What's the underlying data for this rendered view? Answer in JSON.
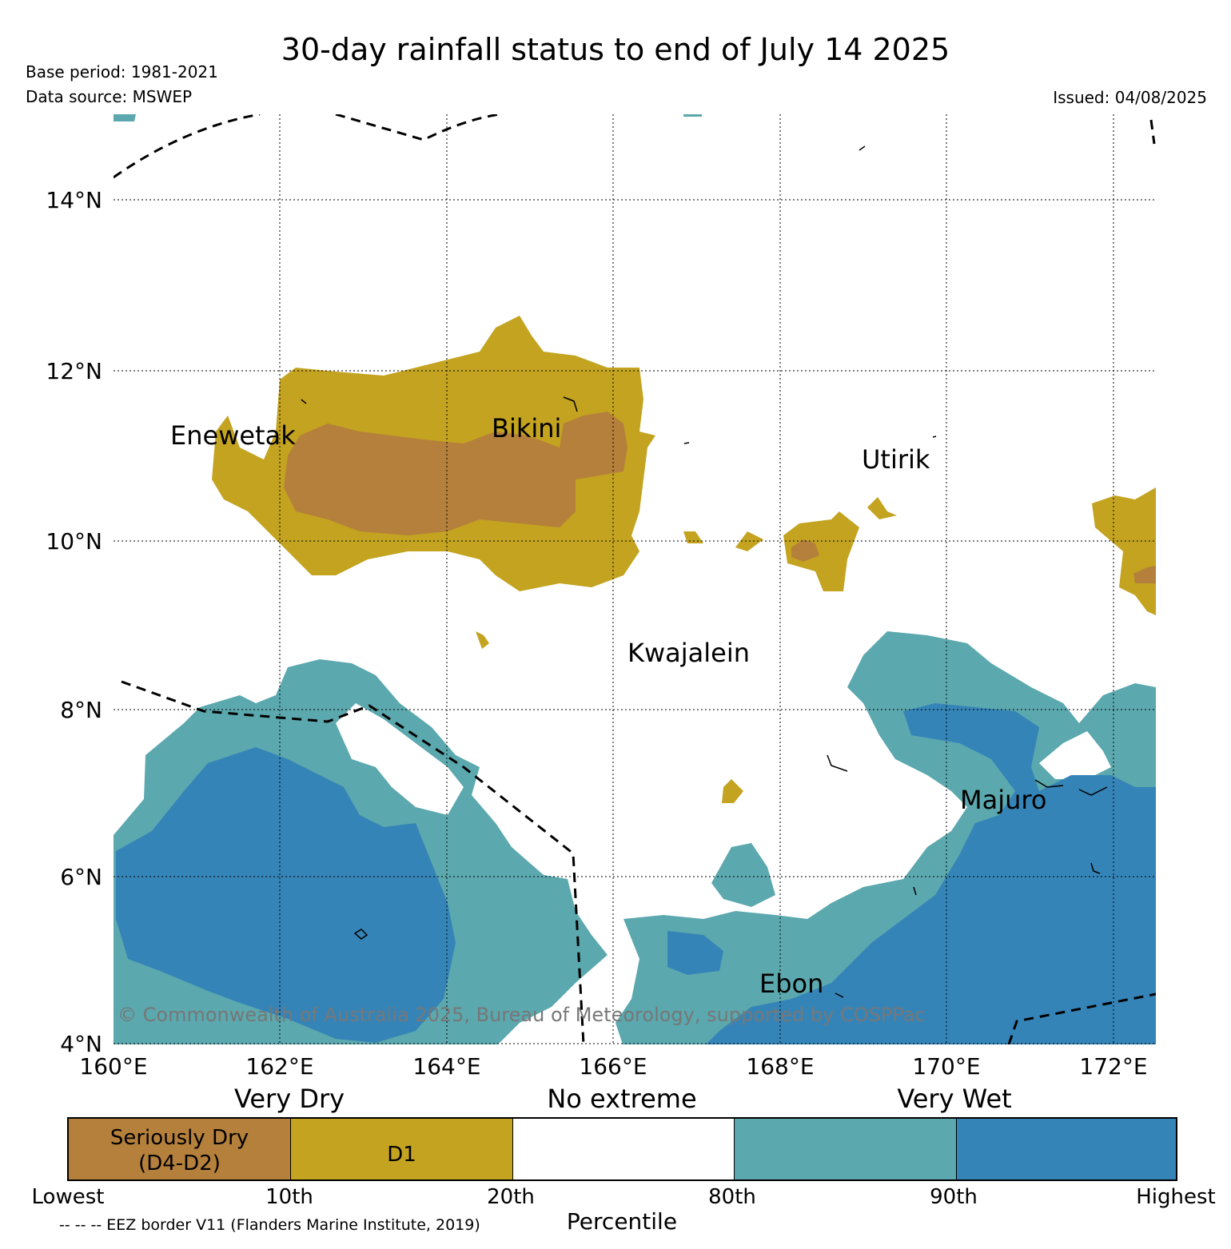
{
  "header": {
    "title": "30-day rainfall status to end of July 14 2025",
    "base_period": "Base period: 1981-2021",
    "data_source": "Data source: MSWEP",
    "issued": "Issued: 04/08/2025"
  },
  "map": {
    "lat_labels": [
      "14°N",
      "12°N",
      "10°N",
      "8°N",
      "6°N",
      "4°N"
    ],
    "lon_labels": [
      "160°E",
      "162°E",
      "164°E",
      "166°E",
      "168°E",
      "170°E",
      "172°E"
    ],
    "places": [
      "Enewetak",
      "Bikini",
      "Utirik",
      "Kwajalein",
      "Majuro",
      "Ebon"
    ],
    "copyright": "© Commonwealth of Australia 2025, Bureau of Meteorology, supported by COSPPac",
    "colors": {
      "seriously_dry": "#b5803b",
      "d1": "#c3a31f",
      "no_extreme": "#ffffff",
      "very_wet_80": "#5ba8ae",
      "very_wet_90": "#3584b7"
    }
  },
  "legend": {
    "headings": [
      "Very Dry",
      "No extreme",
      "Very Wet"
    ],
    "boxes": [
      "Seriously Dry",
      "(D4-D2)",
      "D1"
    ],
    "ticks": [
      "Lowest",
      "10th",
      "20th",
      "80th",
      "90th",
      "Highest"
    ],
    "axis_label": "Percentile",
    "footnote": "-- -- -- EEZ border V11 (Flanders Marine Institute, 2019)"
  }
}
